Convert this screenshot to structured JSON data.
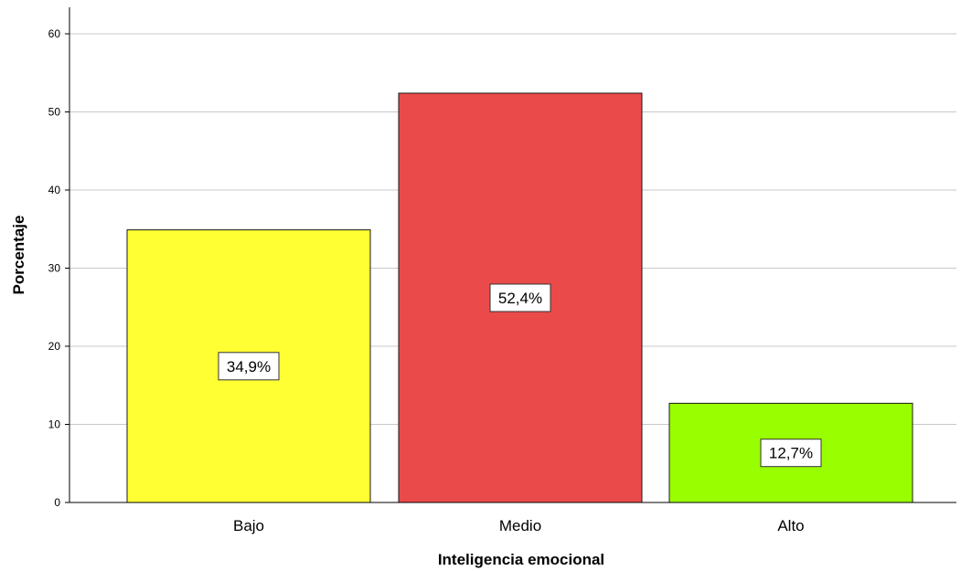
{
  "chart_data": {
    "type": "bar",
    "categories": [
      "Bajo",
      "Medio",
      "Alto"
    ],
    "values": [
      34.9,
      52.4,
      12.7
    ],
    "data_labels": [
      "34,9%",
      "52,4%",
      "12,7%"
    ],
    "colors": [
      "#ffff33",
      "#eb4a4a",
      "#99ff00"
    ],
    "xlabel": "Inteligencia emocional",
    "ylabel": "Porcentaje",
    "ylim": [
      0,
      63
    ],
    "yticks": [
      0,
      10,
      20,
      30,
      40,
      50,
      60
    ],
    "grid": true,
    "legend": "none"
  }
}
